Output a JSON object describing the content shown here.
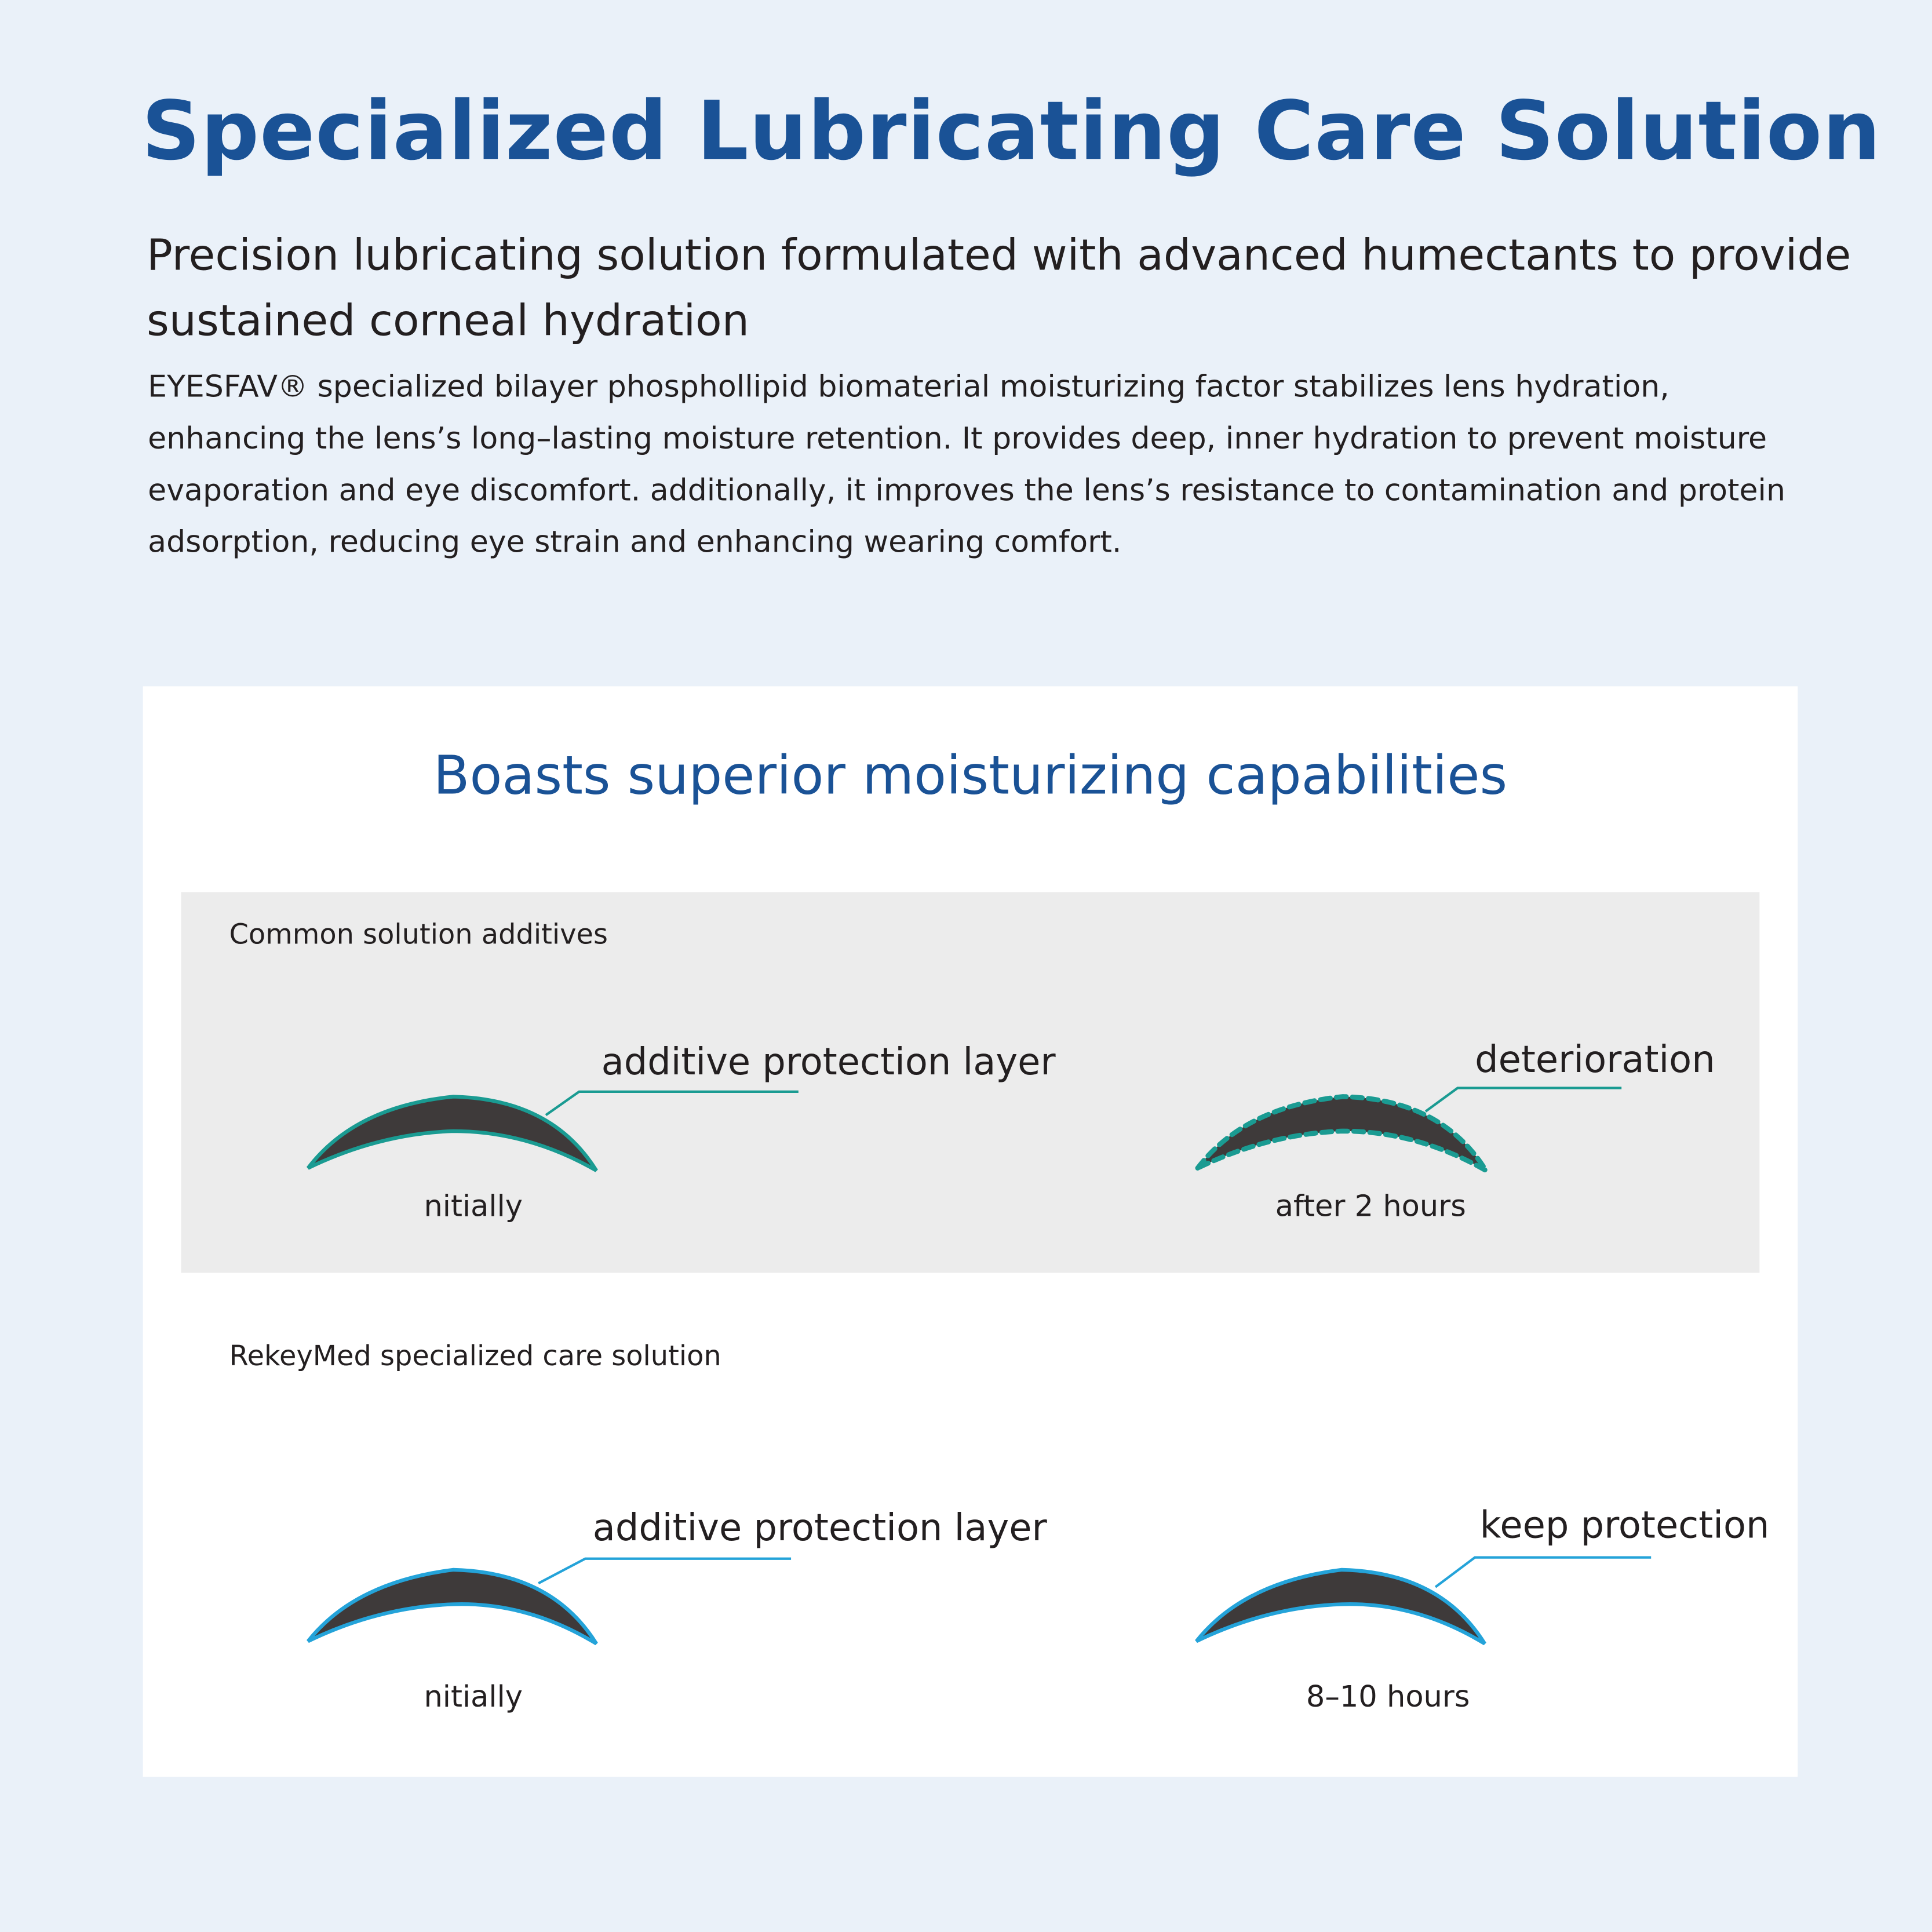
{
  "header": {
    "title": "Specialized Lubricating Care Solution",
    "subtitle": "Precision lubricating solution formulated with advanced humectants to provide sustained corneal hydration",
    "body": "EYESFAV® specialized bilayer phosphollipid biomaterial moisturizing factor stabilizes lens hydration, enhancing the lens’s long–lasting moisture retention. It provides deep, inner hydration to prevent moisture evaporation and eye discomfort. additionally, it improves the lens’s resistance to contamination and protein adsorption, reducing eye strain and enhancing wearing comfort."
  },
  "comparison": {
    "title": "Boasts superior moisturizing capabilities",
    "common": {
      "heading": "Common solution additives",
      "left": {
        "label": "additive protection layer",
        "caption": "nitially"
      },
      "right": {
        "label": "deterioration",
        "caption": "after 2 hours"
      }
    },
    "rekeymed": {
      "heading": "RekeyMed specialized care solution",
      "left": {
        "label": "additive protection layer",
        "caption": "nitially"
      },
      "right": {
        "label": "keep protection",
        "caption": "8–10 hours"
      }
    }
  },
  "colors": {
    "title": "#1a5296",
    "teal_layer": "#1a9b92",
    "blue_layer": "#24a3d9",
    "lens": "#3e3a3a",
    "page_bg": "#eaf1f9",
    "panel_bg": "#ececec"
  }
}
